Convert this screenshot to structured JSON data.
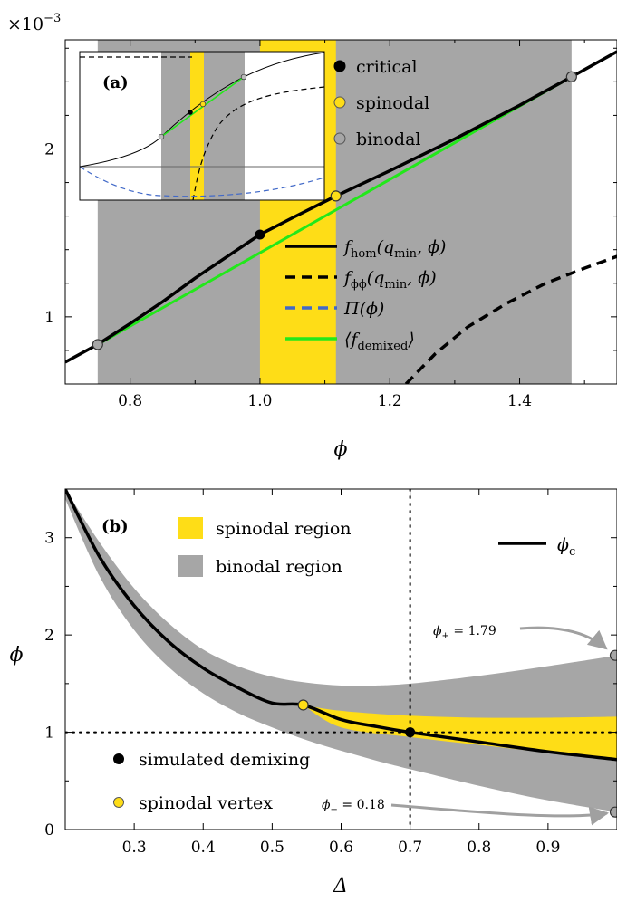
{
  "chart_data": [
    {
      "panel_label": "(a)",
      "type": "line",
      "scale_factor": "×10",
      "scale_exponent": "−3",
      "xlabel": "ϕ",
      "xlim": [
        0.7,
        1.55
      ],
      "ylim": [
        0.6,
        2.65
      ],
      "x_ticks": [
        "0.8",
        "1.0",
        "1.2",
        "1.4"
      ],
      "y_ticks": [
        "1",
        "2"
      ],
      "binodal_region": [
        0.75,
        1.48
      ],
      "spinodal_region": [
        1.0,
        1.117
      ],
      "colors": {
        "binodal": "#a6a6a6",
        "spinodal": "#fedd17",
        "demixed": "#22e81a",
        "pi": "#4169c8"
      },
      "legend_points": [
        {
          "label": "critical",
          "color": "#000000"
        },
        {
          "label": "spinodal",
          "color": "#fedd17"
        },
        {
          "label": "binodal",
          "color": "#a6a6a6"
        }
      ],
      "legend_lines": [
        {
          "main": "f",
          "sub": "hom",
          "arg": "(q",
          "sub2": "min",
          "tail": ", ϕ)",
          "style": "solid",
          "color": "#000000"
        },
        {
          "main": "f",
          "sub": "ϕϕ",
          "arg": "(q",
          "sub2": "min",
          "tail": ", ϕ)",
          "style": "dashed",
          "color": "#000000"
        },
        {
          "main": "Π(ϕ)",
          "sub": "",
          "arg": "",
          "sub2": "",
          "tail": "",
          "style": "dashed",
          "color": "#4169c8"
        },
        {
          "main": "⟨f",
          "sub": "demixed",
          "arg": "",
          "sub2": "",
          "tail": "⟩",
          "style": "solid",
          "color": "#22e81a"
        }
      ],
      "f_hom": [
        [
          0.7,
          0.73
        ],
        [
          0.75,
          0.835
        ],
        [
          0.8,
          0.96
        ],
        [
          0.85,
          1.09
        ],
        [
          0.9,
          1.23
        ],
        [
          0.95,
          1.36
        ],
        [
          1.0,
          1.49
        ],
        [
          1.05,
          1.59
        ],
        [
          1.117,
          1.72
        ],
        [
          1.2,
          1.87
        ],
        [
          1.3,
          2.06
        ],
        [
          1.4,
          2.26
        ],
        [
          1.48,
          2.43
        ],
        [
          1.55,
          2.58
        ]
      ],
      "f_demixed": [
        [
          0.75,
          0.835
        ],
        [
          1.48,
          2.43
        ]
      ],
      "f_phiphi": [
        [
          1.225,
          0.6
        ],
        [
          1.27,
          0.78
        ],
        [
          1.32,
          0.94
        ],
        [
          1.38,
          1.08
        ],
        [
          1.44,
          1.2
        ],
        [
          1.5,
          1.29
        ],
        [
          1.55,
          1.36
        ]
      ],
      "binodal_points": [
        [
          0.75,
          0.835
        ],
        [
          1.48,
          2.43
        ]
      ],
      "critical_point": [
        1.0,
        1.49
      ],
      "spinodal_point": [
        1.117,
        1.72
      ]
    },
    {
      "panel_label": "(b)",
      "type": "area",
      "xlabel": "Δ",
      "ylabel": "ϕ",
      "xlim": [
        0.2,
        1.0
      ],
      "ylim": [
        0,
        3.5
      ],
      "x_ticks": [
        "0.3",
        "0.4",
        "0.5",
        "0.6",
        "0.7",
        "0.8",
        "0.9"
      ],
      "y_ticks": [
        "0",
        "1",
        "2",
        "3"
      ],
      "legend": [
        {
          "label": "spinodal region",
          "color": "#fedd17"
        },
        {
          "label": "binodal region",
          "color": "#a6a6a6"
        }
      ],
      "line_legend": {
        "main": "ϕ",
        "sub": "c"
      },
      "point_legend": [
        {
          "label": "simulated demixing",
          "color": "#000000"
        },
        {
          "label": "spinodal vertex",
          "color": "#fedd17"
        }
      ],
      "phi_c": [
        [
          0.2,
          3.5
        ],
        [
          0.25,
          2.8
        ],
        [
          0.3,
          2.3
        ],
        [
          0.35,
          1.93
        ],
        [
          0.4,
          1.66
        ],
        [
          0.45,
          1.46
        ],
        [
          0.5,
          1.3
        ],
        [
          0.545,
          1.28
        ],
        [
          0.6,
          1.13
        ],
        [
          0.65,
          1.06
        ],
        [
          0.7,
          1.0
        ],
        [
          0.8,
          0.9
        ],
        [
          0.9,
          0.8
        ],
        [
          1.0,
          0.72
        ]
      ],
      "binodal_upper": [
        [
          0.2,
          3.5
        ],
        [
          0.25,
          2.95
        ],
        [
          0.3,
          2.48
        ],
        [
          0.35,
          2.12
        ],
        [
          0.4,
          1.85
        ],
        [
          0.45,
          1.68
        ],
        [
          0.5,
          1.57
        ],
        [
          0.55,
          1.51
        ],
        [
          0.6,
          1.48
        ],
        [
          0.65,
          1.48
        ],
        [
          0.7,
          1.5
        ],
        [
          0.8,
          1.58
        ],
        [
          0.9,
          1.68
        ],
        [
          1.0,
          1.79
        ]
      ],
      "binodal_lower": [
        [
          0.2,
          3.4
        ],
        [
          0.25,
          2.6
        ],
        [
          0.3,
          2.05
        ],
        [
          0.35,
          1.67
        ],
        [
          0.4,
          1.4
        ],
        [
          0.45,
          1.2
        ],
        [
          0.5,
          1.05
        ],
        [
          0.55,
          0.92
        ],
        [
          0.6,
          0.81
        ],
        [
          0.65,
          0.71
        ],
        [
          0.7,
          0.62
        ],
        [
          0.8,
          0.45
        ],
        [
          0.9,
          0.3
        ],
        [
          1.0,
          0.18
        ]
      ],
      "spinodal_upper": [
        [
          0.545,
          1.28
        ],
        [
          0.6,
          1.22
        ],
        [
          0.7,
          1.17
        ],
        [
          0.8,
          1.15
        ],
        [
          0.9,
          1.15
        ],
        [
          1.0,
          1.16
        ]
      ],
      "spinodal_lower": [
        [
          0.545,
          1.28
        ],
        [
          0.6,
          1.05
        ],
        [
          0.7,
          0.95
        ],
        [
          0.8,
          0.87
        ],
        [
          0.9,
          0.79
        ],
        [
          1.0,
          0.72
        ]
      ],
      "simulated_demixing": [
        0.7,
        1.0
      ],
      "spinodal_vertex": [
        0.545,
        1.28
      ],
      "binodal_end_points": [
        [
          1.0,
          1.79
        ],
        [
          1.0,
          0.18
        ]
      ],
      "dotted_lines": {
        "x": 0.7,
        "y": 1.0
      },
      "annotations": [
        {
          "main": "ϕ",
          "sub": "+",
          "text": " = 1.79"
        },
        {
          "main": "ϕ",
          "sub": "−",
          "text": " = 0.18"
        }
      ]
    }
  ]
}
